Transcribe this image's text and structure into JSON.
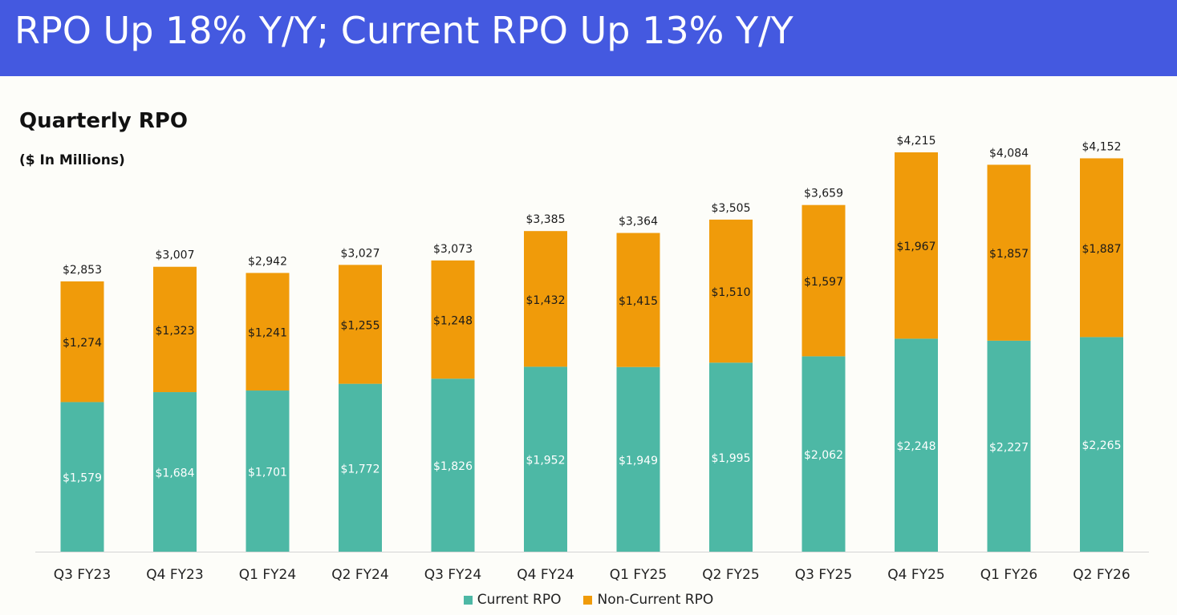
{
  "header": {
    "title": "RPO Up 18% Y/Y; Current RPO Up 13% Y/Y"
  },
  "colors": {
    "banner": "#4459e0",
    "current": "#4db8a5",
    "non_current": "#f09b0a"
  },
  "chart_data": {
    "type": "bar",
    "stacked": true,
    "title": "Quarterly RPO",
    "subtitle": "($ In Millions)",
    "categories": [
      "Q3 FY23",
      "Q4 FY23",
      "Q1 FY24",
      "Q2 FY24",
      "Q3 FY24",
      "Q4 FY24",
      "Q1 FY25",
      "Q2 FY25",
      "Q3 FY25",
      "Q4 FY25",
      "Q1 FY26",
      "Q2 FY26"
    ],
    "series": [
      {
        "name": "Current RPO",
        "values": [
          1579,
          1684,
          1701,
          1772,
          1826,
          1952,
          1949,
          1995,
          2062,
          2248,
          2227,
          2265
        ],
        "labels": [
          "$1,579",
          "$1,684",
          "$1,701",
          "$1,772",
          "$1,826",
          "$1,952",
          "$1,949",
          "$1,995",
          "$2,062",
          "$2,248",
          "$2,227",
          "$2,265"
        ]
      },
      {
        "name": "Non-Current RPO",
        "values": [
          1274,
          1323,
          1241,
          1255,
          1248,
          1432,
          1415,
          1510,
          1597,
          1967,
          1857,
          1887
        ],
        "labels": [
          "$1,274",
          "$1,323",
          "$1,241",
          "$1,255",
          "$1,248",
          "$1,432",
          "$1,415",
          "$1,510",
          "$1,597",
          "$1,967",
          "$1,857",
          "$1,887"
        ]
      }
    ],
    "totals": [
      2853,
      3007,
      2942,
      3027,
      3073,
      3385,
      3364,
      3505,
      3659,
      4215,
      4084,
      4152
    ],
    "total_labels": [
      "$2,853",
      "$3,007",
      "$2,942",
      "$3,027",
      "$3,073",
      "$3,385",
      "$3,364",
      "$3,505",
      "$3,659",
      "$4,215",
      "$4,084",
      "$4,152"
    ],
    "ylim": [
      0,
      4215
    ],
    "grid": false,
    "legend": "bottom-center"
  }
}
